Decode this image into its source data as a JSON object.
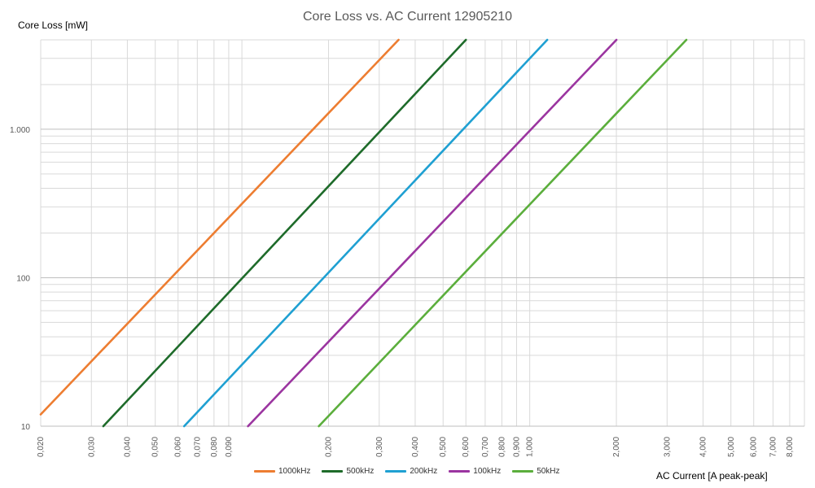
{
  "chart_data": {
    "type": "line",
    "title": "Core Loss vs. AC Current 12905210",
    "xlabel": "AC Current [A peak-peak]",
    "ylabel": "Core Loss [mW]",
    "x_scale": "log",
    "y_scale": "log",
    "xlim": [
      0.02,
      9.0
    ],
    "ylim": [
      10,
      4000
    ],
    "grid": true,
    "legend_position": "bottom",
    "x_tick_values": [
      0.02,
      0.03,
      0.04,
      0.05,
      0.06,
      0.07,
      0.08,
      0.09,
      0.2,
      0.3,
      0.4,
      0.5,
      0.6,
      0.7,
      0.8,
      0.9,
      1.0,
      2.0,
      3.0,
      4.0,
      5.0,
      6.0,
      7.0,
      8.0
    ],
    "x_tick_labels": [
      "0,020",
      "0,030",
      "0,040",
      "0,050",
      "0,060",
      "0,070",
      "0,080",
      "0,090",
      "0,200",
      "0,300",
      "0,400",
      "0,500",
      "0,600",
      "0,700",
      "0,800",
      "0,900",
      "1,000",
      "2,000",
      "3,000",
      "4,000",
      "5,000",
      "6,000",
      "7,000",
      "8,000"
    ],
    "y_tick_values": [
      10,
      100,
      1000
    ],
    "y_tick_labels": [
      "10",
      "100",
      "1.000"
    ],
    "series": [
      {
        "name": "1000kHz",
        "color": "#ED7D31",
        "x": [
          0.02,
          0.35
        ],
        "y": [
          12,
          4000
        ]
      },
      {
        "name": "500kHz",
        "color": "#1E6B2A",
        "x": [
          0.033,
          0.6
        ],
        "y": [
          10,
          4000
        ]
      },
      {
        "name": "200kHz",
        "color": "#1FA0D2",
        "x": [
          0.063,
          1.15
        ],
        "y": [
          10,
          4000
        ]
      },
      {
        "name": "100kHz",
        "color": "#9B35A0",
        "x": [
          0.105,
          2.0
        ],
        "y": [
          10,
          4000
        ]
      },
      {
        "name": "50kHz",
        "color": "#5BAE3C",
        "x": [
          0.185,
          3.5
        ],
        "y": [
          10,
          4000
        ]
      }
    ]
  }
}
